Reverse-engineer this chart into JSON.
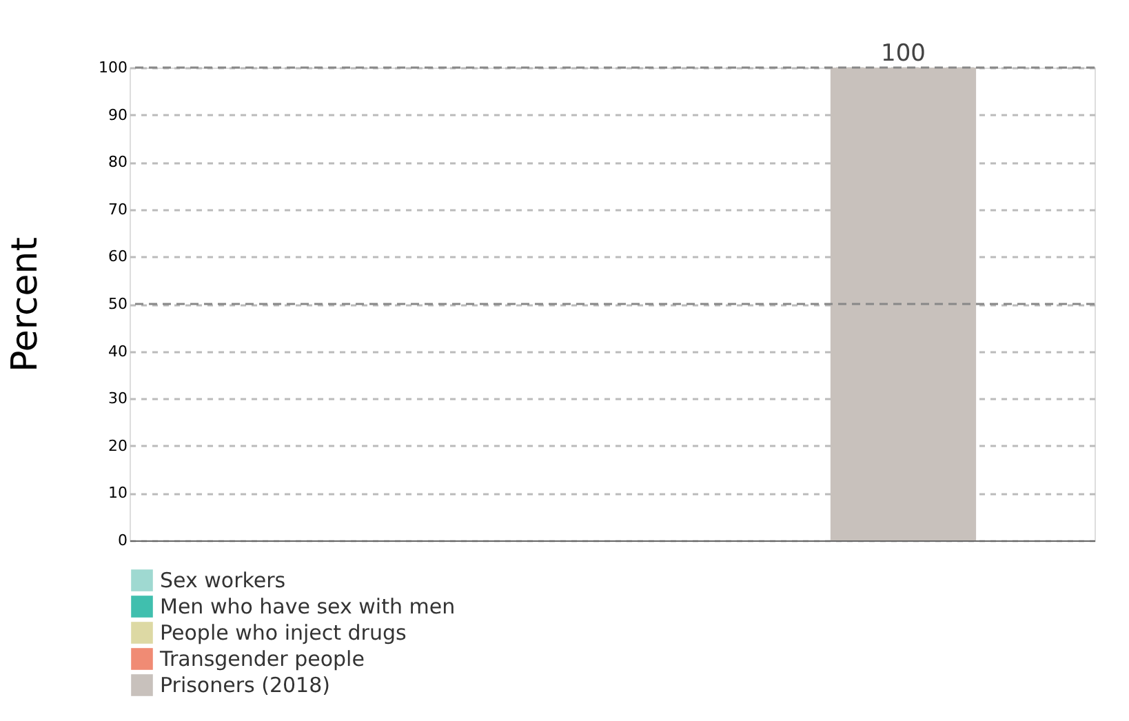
{
  "chart_data": {
    "type": "bar",
    "ylabel": "Percent",
    "categories": [
      null
    ],
    "series": [
      {
        "name": "Sex workers",
        "color": "#9fd9d1",
        "values": [
          null
        ]
      },
      {
        "name": "Men who have sex with men",
        "color": "#40bfae",
        "values": [
          null
        ]
      },
      {
        "name": "People who inject drugs",
        "color": "#ddd9a4",
        "values": [
          null
        ]
      },
      {
        "name": "Transgender people",
        "color": "#f08b74",
        "values": [
          null
        ]
      },
      {
        "name": "Prisoners (2018)",
        "color": "#c8c1bc",
        "values": [
          100
        ]
      }
    ],
    "ylim": [
      0,
      100
    ],
    "yticks": [
      0,
      10,
      20,
      30,
      40,
      50,
      60,
      70,
      80,
      90,
      100
    ],
    "grid": "y",
    "ref_lines": [
      {
        "axis": "y",
        "value": 50,
        "color": "#888888",
        "line_style": "dashed"
      },
      {
        "axis": "y",
        "value": 100,
        "color": "#888888",
        "line_style": "dashed"
      }
    ],
    "legend": "bottom left",
    "data_labels": true
  }
}
